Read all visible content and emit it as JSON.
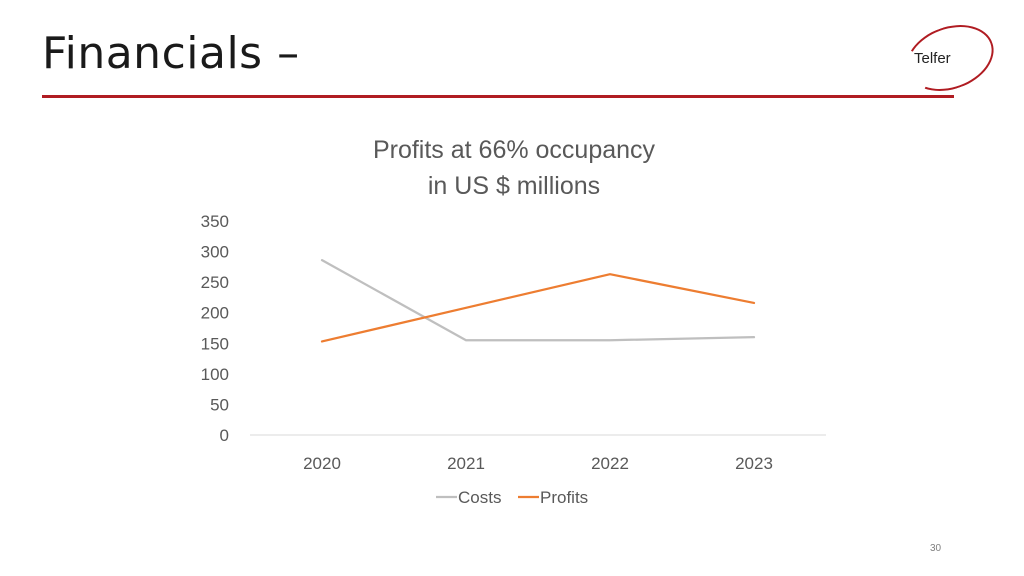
{
  "slide": {
    "title": "Financials –",
    "logo_text": "Telfer",
    "page_number": "30",
    "accent_color": "#b01c22"
  },
  "chart_data": {
    "type": "line",
    "title_lines": [
      "Profits at 66% occupancy",
      "in US $ millions"
    ],
    "categories": [
      "2020",
      "2021",
      "2022",
      "2023"
    ],
    "y_ticks": [
      "0",
      "50",
      "100",
      "150",
      "200",
      "250",
      "300",
      "350"
    ],
    "ylim": [
      0,
      350
    ],
    "grid": false,
    "legend_position": "bottom",
    "series": [
      {
        "name": "Costs",
        "values": [
          286,
          155,
          155,
          160
        ],
        "color": "#bfbfbf"
      },
      {
        "name": "Profits",
        "values": [
          153,
          208,
          263,
          216
        ],
        "color": "#ed7d31"
      }
    ]
  }
}
